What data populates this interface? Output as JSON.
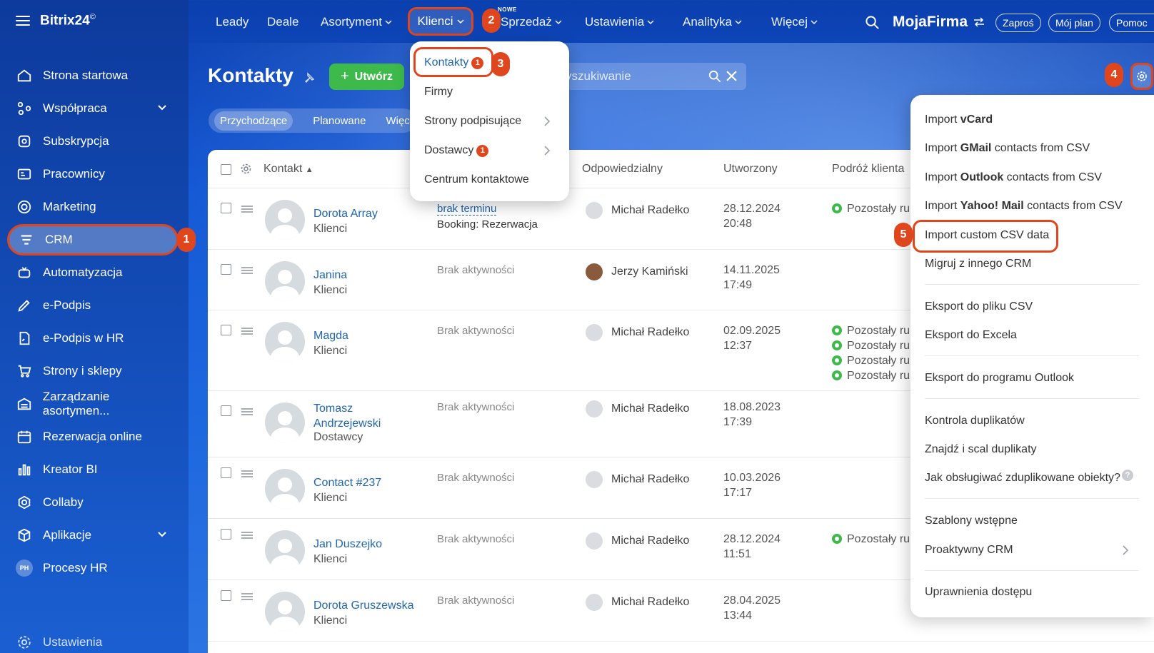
{
  "app": {
    "logo": "Bitrix24",
    "logo_mark": "©"
  },
  "sidebar": {
    "items": [
      {
        "label": "Strona startowa",
        "icon": "home-icon"
      },
      {
        "label": "Współpraca",
        "icon": "collab-icon"
      },
      {
        "label": "Subskrypcja",
        "icon": "subscription-icon"
      },
      {
        "label": "Pracownicy",
        "icon": "employees-icon"
      },
      {
        "label": "Marketing",
        "icon": "marketing-icon"
      },
      {
        "label": "CRM",
        "icon": "crm-icon"
      },
      {
        "label": "Automatyzacja",
        "icon": "automation-icon"
      },
      {
        "label": "e-Podpis",
        "icon": "sign-icon"
      },
      {
        "label": "e-Podpis w HR",
        "icon": "hr-sign-icon"
      },
      {
        "label": "Strony i sklepy",
        "icon": "shop-icon"
      },
      {
        "label": "Zarządzanie asortymen...",
        "icon": "inventory-icon"
      },
      {
        "label": "Rezerwacja online",
        "icon": "calendar-icon"
      },
      {
        "label": "Kreator BI",
        "icon": "bi-icon"
      },
      {
        "label": "Collaby",
        "icon": "collaby-icon"
      },
      {
        "label": "Aplikacje",
        "icon": "apps-icon"
      },
      {
        "label": "Procesy HR",
        "icon": "hr-avatar",
        "avatar_text": "PH"
      },
      {
        "label": "Ustawienia",
        "icon": "gear-icon"
      }
    ]
  },
  "topnav": {
    "items": [
      "Leady",
      "Deale",
      "Asortyment",
      "Klienci",
      "Sprzedaż",
      "Ustawienia",
      "Analityka",
      "Więcej"
    ],
    "new_badge": "NOWE",
    "brand": "MojaFirma",
    "buttons": [
      "Zaproś",
      "Mój plan",
      "Pomoc"
    ]
  },
  "steps": [
    "1",
    "2",
    "3",
    "4",
    "5"
  ],
  "page": {
    "title": "Kontakty",
    "create_label": "Utwórz",
    "search_placeholder": "yszukiwanie",
    "filters": [
      "Przychodzące",
      "Planowane",
      "Więcej"
    ]
  },
  "klienci_menu": {
    "items": [
      {
        "label": "Kontakty",
        "count": "1"
      },
      {
        "label": "Firmy"
      },
      {
        "label": "Strony podpisujące"
      },
      {
        "label": "Dostawcy",
        "count": "1"
      },
      {
        "label": "Centrum kontaktowe"
      }
    ]
  },
  "table": {
    "columns": [
      "Kontakt",
      "Odpowiedzialny",
      "Utworzony",
      "Podróż klienta"
    ],
    "rows": [
      {
        "name": "Dorota Array",
        "type": "Klienci",
        "activity": "brak terminu",
        "activity2": "Booking: Rezerwacja",
        "resp": "Michał Radełko",
        "date": "28.12.2024",
        "time": "20:48",
        "journey": [
          "Pozostały ru"
        ]
      },
      {
        "name": "Janina",
        "type": "Klienci",
        "activity": "Brak aktywności",
        "resp": "Jerzy Kamiński",
        "date": "14.11.2025",
        "time": "17:49",
        "journey": []
      },
      {
        "name": "Magda",
        "type": "Klienci",
        "activity": "Brak aktywności",
        "resp": "Michał Radełko",
        "date": "02.09.2025",
        "time": "12:37",
        "journey": [
          "Pozostały ru",
          "Pozostały ru",
          "Pozostały ru",
          "Pozostały ru"
        ]
      },
      {
        "name": "Tomasz",
        "name2": "Andrzejewski",
        "type": "Dostawcy",
        "activity": "Brak aktywności",
        "resp": "Michał Radełko",
        "date": "18.08.2023",
        "time": "17:39",
        "journey": []
      },
      {
        "name": "Contact #237",
        "type": "Klienci",
        "activity": "Brak aktywności",
        "resp": "Michał Radełko",
        "date": "10.03.2026",
        "time": "17:17",
        "journey": []
      },
      {
        "name": "Jan Duszejko",
        "type": "Klienci",
        "activity": "Brak aktywności",
        "resp": "Michał Radełko",
        "date": "28.12.2024",
        "time": "11:51",
        "journey": [
          "Pozostały ru"
        ]
      },
      {
        "name": "Dorota Gruszewska",
        "type": "Klienci",
        "activity": "Brak aktywności",
        "resp": "Michał Radełko",
        "date": "28.04.2025",
        "time": "13:44",
        "journey": []
      }
    ]
  },
  "gear_menu": {
    "import_vcard": {
      "pre": "Import ",
      "bold": "vCard",
      "post": ""
    },
    "import_gmail": {
      "pre": "Import ",
      "bold": "GMail",
      "post": " contacts from CSV"
    },
    "import_outlook": {
      "pre": "Import ",
      "bold": "Outlook",
      "post": " contacts from CSV"
    },
    "import_yahoo": {
      "pre": "Import ",
      "bold": "Yahoo! Mail",
      "post": " contacts from CSV"
    },
    "import_custom": "Import custom CSV data",
    "migrate": "Migruj z innego CRM",
    "export_csv": "Eksport do pliku CSV",
    "export_excel": "Eksport do Excela",
    "export_outlook": "Eksport do programu Outlook",
    "dup_control": "Kontrola duplikatów",
    "dup_merge": "Znajdź i scal duplikaty",
    "dup_help": "Jak obsługiwać zduplikowane obiekty?",
    "help_mark": "?",
    "templates": "Szablony wstępne",
    "proactive": "Proaktywny CRM",
    "permissions": "Uprawnienia dostępu"
  },
  "colors": {
    "accent": "#e0461d",
    "create": "#3dba4b",
    "link": "#2067b0"
  }
}
